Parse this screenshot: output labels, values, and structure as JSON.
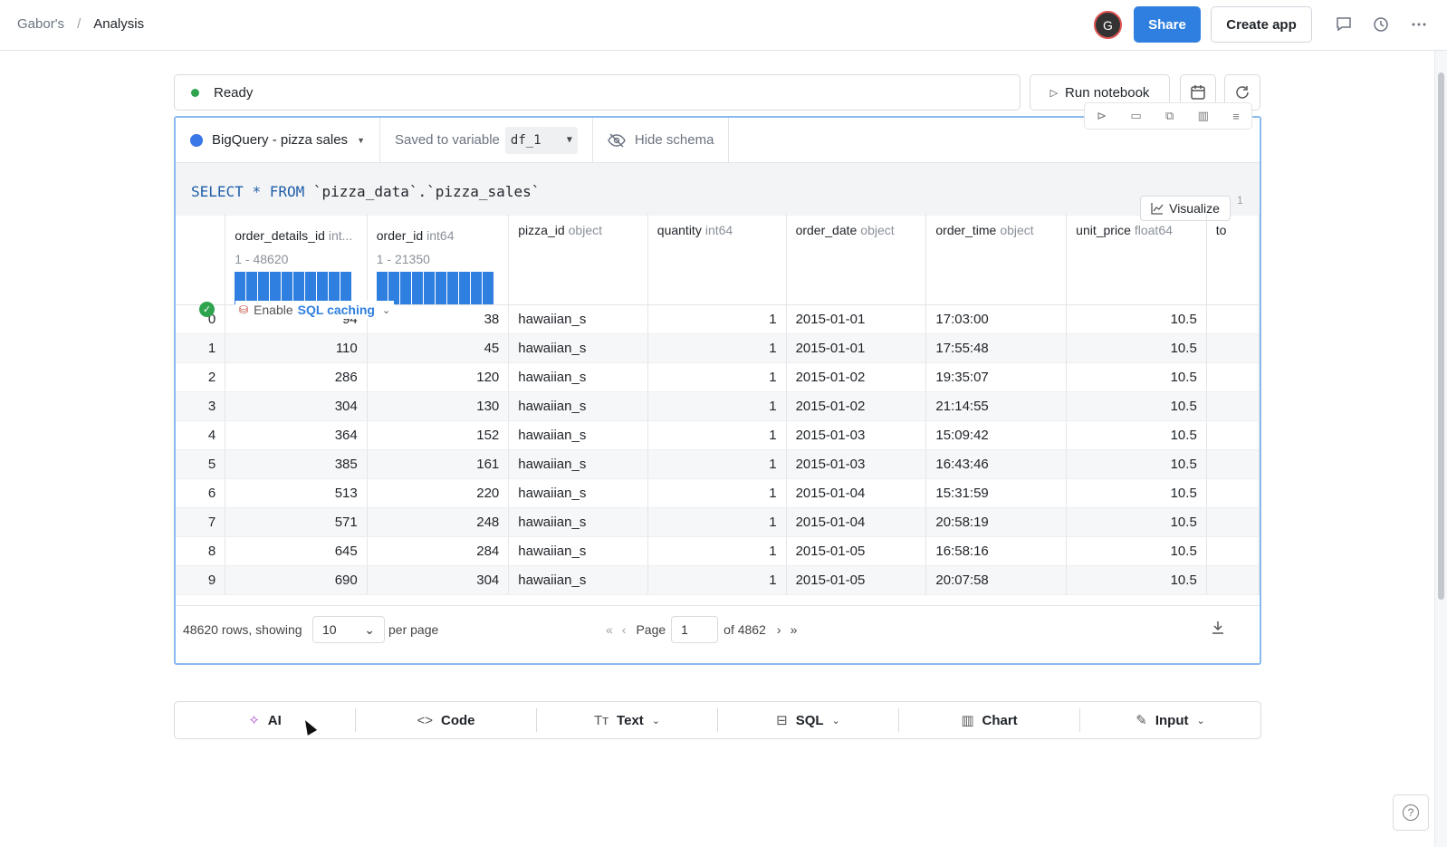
{
  "breadcrumb": {
    "workspace": "Gabor's",
    "separator": "/",
    "page": "Analysis"
  },
  "header": {
    "avatar_initial": "G",
    "share_label": "Share",
    "create_app_label": "Create app",
    "icons": [
      "comment-icon",
      "history-icon",
      "more-icon"
    ]
  },
  "status": {
    "text": "Ready",
    "color": "#2ea44f"
  },
  "toolbar": {
    "run_label": "Run notebook",
    "icons": [
      "calendar-icon",
      "refresh-icon"
    ]
  },
  "cell": {
    "source": "BigQuery - pizza sales",
    "saved_label": "Saved to variable",
    "variable": "df_1",
    "hide_schema_label": "Hide schema",
    "sql_parts": {
      "kw1": "SELECT",
      "star": "*",
      "kw2": "FROM",
      "rest": "`pizza_data`.`pizza_sales`"
    },
    "line_number": "1",
    "visualize_label": "Visualize",
    "caching": {
      "prefix": "Enable",
      "bold": "SQL caching"
    }
  },
  "table": {
    "columns": [
      {
        "name": "order_details_id",
        "type": "int...",
        "range": "1 - 48620",
        "histogram": true
      },
      {
        "name": "order_id",
        "type": "int64",
        "range": "1 - 21350",
        "histogram": true
      },
      {
        "name": "pizza_id",
        "type": "object",
        "range": "",
        "histogram": false
      },
      {
        "name": "quantity",
        "type": "int64",
        "range": "",
        "histogram": false
      },
      {
        "name": "order_date",
        "type": "object",
        "range": "",
        "histogram": false
      },
      {
        "name": "order_time",
        "type": "object",
        "range": "",
        "histogram": false
      },
      {
        "name": "unit_price",
        "type": "float64",
        "range": "",
        "histogram": false
      },
      {
        "name": "to",
        "type": "",
        "range": "",
        "histogram": false
      }
    ],
    "rows": [
      [
        "0",
        "94",
        "38",
        "hawaiian_s",
        "1",
        "2015-01-01",
        "17:03:00",
        "10.5"
      ],
      [
        "1",
        "110",
        "45",
        "hawaiian_s",
        "1",
        "2015-01-01",
        "17:55:48",
        "10.5"
      ],
      [
        "2",
        "286",
        "120",
        "hawaiian_s",
        "1",
        "2015-01-02",
        "19:35:07",
        "10.5"
      ],
      [
        "3",
        "304",
        "130",
        "hawaiian_s",
        "1",
        "2015-01-02",
        "21:14:55",
        "10.5"
      ],
      [
        "4",
        "364",
        "152",
        "hawaiian_s",
        "1",
        "2015-01-03",
        "15:09:42",
        "10.5"
      ],
      [
        "5",
        "385",
        "161",
        "hawaiian_s",
        "1",
        "2015-01-03",
        "16:43:46",
        "10.5"
      ],
      [
        "6",
        "513",
        "220",
        "hawaiian_s",
        "1",
        "2015-01-04",
        "15:31:59",
        "10.5"
      ],
      [
        "7",
        "571",
        "248",
        "hawaiian_s",
        "1",
        "2015-01-04",
        "20:58:19",
        "10.5"
      ],
      [
        "8",
        "645",
        "284",
        "hawaiian_s",
        "1",
        "2015-01-05",
        "16:58:16",
        "10.5"
      ],
      [
        "9",
        "690",
        "304",
        "hawaiian_s",
        "1",
        "2015-01-05",
        "20:07:58",
        "10.5"
      ]
    ]
  },
  "pager": {
    "rows_text": "48620 rows, showing",
    "per_page_value": "10",
    "per_page_label": "per page",
    "page_label": "Page",
    "page_value": "1",
    "of_text": "of 4862"
  },
  "add_bar": [
    {
      "label": "AI",
      "icon": "sparkle-icon",
      "dropdown": false
    },
    {
      "label": "Code",
      "icon": "code-icon",
      "dropdown": false
    },
    {
      "label": "Text",
      "icon": "text-icon",
      "dropdown": true
    },
    {
      "label": "SQL",
      "icon": "sql-icon",
      "dropdown": true
    },
    {
      "label": "Chart",
      "icon": "chart-icon",
      "dropdown": false
    },
    {
      "label": "Input",
      "icon": "pencil-icon",
      "dropdown": true
    }
  ]
}
